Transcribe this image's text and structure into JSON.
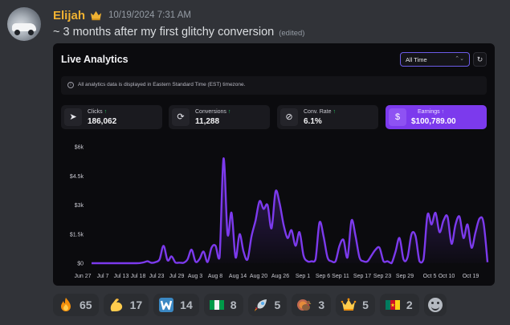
{
  "message": {
    "username": "Elijah",
    "timestamp": "10/19/2024 7:31 AM",
    "text": "~ 3 months after my first glitchy conversion",
    "edited": "(edited)"
  },
  "dashboard": {
    "title": "Live Analytics",
    "range": "All Time",
    "note": "All analytics data is displayed in Eastern Standard Time (EST) timezone.",
    "stats": [
      {
        "label": "Clicks",
        "value": "186,062",
        "icon": "cursor-icon"
      },
      {
        "label": "Conversions",
        "value": "11,288",
        "icon": "refresh-icon"
      },
      {
        "label": "Conv. Rate",
        "value": "6.1%",
        "icon": "no-currency-icon"
      },
      {
        "label": "Earnings",
        "value": "$100,789.00",
        "icon": "dollar-icon"
      }
    ],
    "accent": "#7c3aed"
  },
  "chart_data": {
    "type": "area",
    "y_ticks": [
      "$0",
      "$1.5k",
      "$3k",
      "$4.5k",
      "$6k"
    ],
    "ylim": [
      0,
      6000
    ],
    "x_tick_labels": [
      "Jun 27",
      "Jul 7",
      "Jul 13",
      "Jul 18",
      "Jul 23",
      "Jul 29",
      "Aug 3",
      "Aug 8",
      "Aug 14",
      "Aug 20",
      "Aug 26",
      "Sep 1",
      "Sep 6",
      "Sep 11",
      "Sep 17",
      "Sep 23",
      "Sep 29",
      "Oct 5",
      "Oct 10",
      "Oct 19"
    ],
    "series": [
      {
        "values": [
          0,
          0,
          0,
          0,
          0,
          0,
          0,
          0,
          0,
          0,
          0,
          0,
          10,
          40,
          100,
          20,
          60,
          200,
          900,
          150,
          350,
          30,
          30,
          20,
          200,
          700,
          80,
          220,
          600,
          60,
          800,
          900,
          300,
          5400,
          1500,
          2600,
          300,
          1500,
          600,
          200,
          1400,
          2200,
          3200,
          2800,
          3000,
          1800,
          3700,
          3100,
          2000,
          1300,
          1700,
          900,
          1600,
          400,
          100,
          100,
          200,
          2100,
          1400,
          300,
          100,
          100,
          900,
          1200,
          300,
          2200,
          1400,
          300,
          100,
          100,
          400,
          700,
          800,
          100,
          100,
          0,
          600,
          1300,
          200,
          300,
          1500,
          1400,
          100,
          200,
          2500,
          2000,
          2600,
          1600,
          2200,
          2400,
          1000,
          2000,
          2400,
          1300,
          2000,
          800,
          1600,
          2300,
          2100,
          50
        ],
        "color": "#7c3aed"
      }
    ],
    "grid": false
  },
  "reactions": [
    {
      "emoji": "fire",
      "count": "65"
    },
    {
      "emoji": "flexed-biceps",
      "count": "17"
    },
    {
      "emoji": "letter-w",
      "count": "14"
    },
    {
      "emoji": "flag-nigeria",
      "count": "8"
    },
    {
      "emoji": "rocket",
      "count": "5"
    },
    {
      "emoji": "turkey",
      "count": "3"
    },
    {
      "emoji": "crown",
      "count": "5"
    },
    {
      "emoji": "flag-cameroon",
      "count": "2"
    }
  ]
}
